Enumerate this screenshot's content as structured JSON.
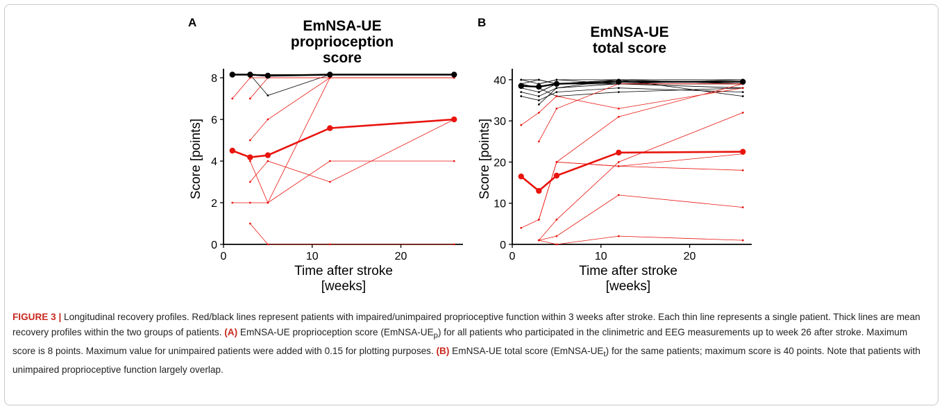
{
  "panels": [
    {
      "letter": "A",
      "title_lines": [
        "EmNSA-UE",
        "proprioception",
        "score"
      ],
      "ylabel": "Score [points]",
      "xlabel_lines": [
        "Time after stroke",
        "[weeks]"
      ]
    },
    {
      "letter": "B",
      "title_lines": [
        "EmNSA-UE",
        "total score"
      ],
      "ylabel": "Score [points]",
      "xlabel_lines": [
        "Time after stroke",
        "[weeks]"
      ]
    }
  ],
  "caption": {
    "label": "FIGURE 3 |",
    "text1": " Longitudinal recovery profiles. Red/black lines represent patients with impaired/unimpaired proprioceptive function within 3 weeks after stroke. Each thin line represents a single patient. Thick lines are mean recovery profiles within the two groups of patients. ",
    "labelA": "(A)",
    "text2": " EmNSA-UE proprioception score (EmNSA-UE",
    "subA": "p",
    "text3": ") for all patients who participated in the clinimetric and EEG measurements up to week 26 after stroke. Maximum score is 8 points. Maximum value for unimpaired patients were added with 0.15 for plotting purposes. ",
    "labelB": "(B)",
    "text4": " EmNSA-UE total score (EmNSA-UE",
    "subB": "t",
    "text5": ") for the same patients; maximum score is 40 points. Note that patients with unimpaired proprioceptive function largely overlap."
  },
  "colors": {
    "impaired": "#e8140e",
    "unimpaired": "#000000",
    "caption_accent": "#c8281e"
  },
  "chart_data": [
    {
      "type": "line",
      "xlim": [
        0,
        27
      ],
      "ylim": [
        0,
        8.3
      ],
      "xticks": [
        0,
        10,
        20
      ],
      "yticks": [
        0,
        2,
        4,
        6,
        8
      ],
      "x": [
        1,
        3,
        5,
        12,
        26
      ],
      "thin_black": [
        [
          [
            1,
            8.15
          ],
          [
            3,
            8.15
          ],
          [
            5,
            8.15
          ],
          [
            12,
            8.15
          ],
          [
            26,
            8.15
          ]
        ],
        [
          [
            1,
            8.15
          ],
          [
            3,
            8.15
          ],
          [
            5,
            7.15
          ],
          [
            12,
            8.15
          ],
          [
            26,
            8.15
          ]
        ],
        [
          [
            3,
            8.15
          ],
          [
            5,
            8.15
          ],
          [
            12,
            8.15
          ],
          [
            26,
            8.15
          ]
        ]
      ],
      "thin_red": [
        [
          [
            1,
            7
          ],
          [
            3,
            8
          ],
          [
            5,
            8
          ],
          [
            12,
            8
          ],
          [
            26,
            8
          ]
        ],
        [
          [
            3,
            7
          ],
          [
            5,
            8
          ],
          [
            12,
            8
          ],
          [
            26,
            8
          ]
        ],
        [
          [
            1,
            2
          ],
          [
            3,
            2
          ],
          [
            5,
            2
          ],
          [
            12,
            8
          ],
          [
            26,
            8
          ]
        ],
        [
          [
            3,
            5
          ],
          [
            5,
            6
          ],
          [
            12,
            8
          ],
          [
            26,
            8
          ]
        ],
        [
          [
            3,
            3
          ],
          [
            5,
            4
          ],
          [
            12,
            3
          ],
          [
            26,
            6
          ]
        ],
        [
          [
            3,
            1
          ],
          [
            5,
            0
          ],
          [
            12,
            0
          ],
          [
            26,
            0
          ]
        ],
        [
          [
            3,
            4
          ],
          [
            5,
            2
          ],
          [
            12,
            4
          ],
          [
            26,
            4
          ]
        ]
      ],
      "mean_black": [
        [
          1,
          8.15
        ],
        [
          3,
          8.15
        ],
        [
          5,
          8.1
        ],
        [
          12,
          8.15
        ],
        [
          26,
          8.15
        ]
      ],
      "mean_red": [
        [
          1,
          4.5
        ],
        [
          3,
          4.18
        ],
        [
          5,
          4.28
        ],
        [
          12,
          5.58
        ],
        [
          26,
          6.0
        ]
      ]
    },
    {
      "type": "line",
      "xlim": [
        0,
        27
      ],
      "ylim": [
        0,
        42
      ],
      "xticks": [
        0,
        10,
        20
      ],
      "yticks": [
        0,
        10,
        20,
        30,
        40
      ],
      "x": [
        1,
        3,
        5,
        12,
        26
      ],
      "thin_black": [
        [
          [
            1,
            40
          ],
          [
            3,
            39
          ],
          [
            5,
            40
          ],
          [
            12,
            40
          ],
          [
            26,
            40
          ]
        ],
        [
          [
            1,
            39
          ],
          [
            3,
            40
          ],
          [
            5,
            39
          ],
          [
            12,
            40
          ],
          [
            26,
            39
          ]
        ],
        [
          [
            1,
            38
          ],
          [
            3,
            37
          ],
          [
            5,
            39
          ],
          [
            12,
            39
          ],
          [
            26,
            40
          ]
        ],
        [
          [
            1,
            37
          ],
          [
            3,
            36
          ],
          [
            5,
            38
          ],
          [
            12,
            39
          ],
          [
            26,
            39
          ]
        ],
        [
          [
            1,
            36
          ],
          [
            3,
            35
          ],
          [
            5,
            37
          ],
          [
            12,
            38
          ],
          [
            26,
            37
          ]
        ],
        [
          [
            1,
            39
          ],
          [
            3,
            38
          ],
          [
            5,
            36
          ],
          [
            12,
            37
          ],
          [
            26,
            38
          ]
        ],
        [
          [
            3,
            39
          ],
          [
            5,
            40
          ],
          [
            12,
            39
          ],
          [
            26,
            38
          ]
        ],
        [
          [
            3,
            34
          ],
          [
            5,
            38
          ],
          [
            12,
            40
          ],
          [
            26,
            39
          ]
        ],
        [
          [
            1,
            40
          ],
          [
            3,
            40
          ],
          [
            5,
            39
          ],
          [
            12,
            40
          ],
          [
            26,
            36
          ]
        ],
        [
          [
            3,
            37
          ],
          [
            5,
            39
          ],
          [
            12,
            39
          ],
          [
            26,
            39
          ]
        ]
      ],
      "thin_red": [
        [
          [
            1,
            29
          ],
          [
            3,
            32
          ],
          [
            5,
            36
          ],
          [
            12,
            33
          ],
          [
            26,
            38
          ]
        ],
        [
          [
            3,
            25
          ],
          [
            5,
            33
          ],
          [
            12,
            39
          ],
          [
            26,
            39
          ]
        ],
        [
          [
            1,
            4
          ],
          [
            3,
            6
          ],
          [
            5,
            20
          ],
          [
            12,
            19
          ],
          [
            26,
            22
          ]
        ],
        [
          [
            3,
            1
          ],
          [
            5,
            6
          ],
          [
            12,
            20
          ],
          [
            26,
            32
          ]
        ],
        [
          [
            3,
            1
          ],
          [
            5,
            2
          ],
          [
            12,
            12
          ],
          [
            26,
            9
          ]
        ],
        [
          [
            3,
            1
          ],
          [
            5,
            0
          ],
          [
            12,
            2
          ],
          [
            26,
            1
          ]
        ],
        [
          [
            3,
            6
          ],
          [
            5,
            20
          ],
          [
            12,
            31
          ],
          [
            26,
            39
          ]
        ],
        [
          [
            5,
            20
          ],
          [
            12,
            19
          ],
          [
            26,
            18
          ]
        ]
      ],
      "mean_black": [
        [
          1,
          38.5
        ],
        [
          3,
          38.3
        ],
        [
          5,
          39.0
        ],
        [
          12,
          39.5
        ],
        [
          26,
          39.5
        ]
      ],
      "mean_red": [
        [
          1,
          16.5
        ],
        [
          3,
          13.0
        ],
        [
          5,
          16.7
        ],
        [
          12,
          22.3
        ],
        [
          26,
          22.5
        ]
      ]
    }
  ]
}
